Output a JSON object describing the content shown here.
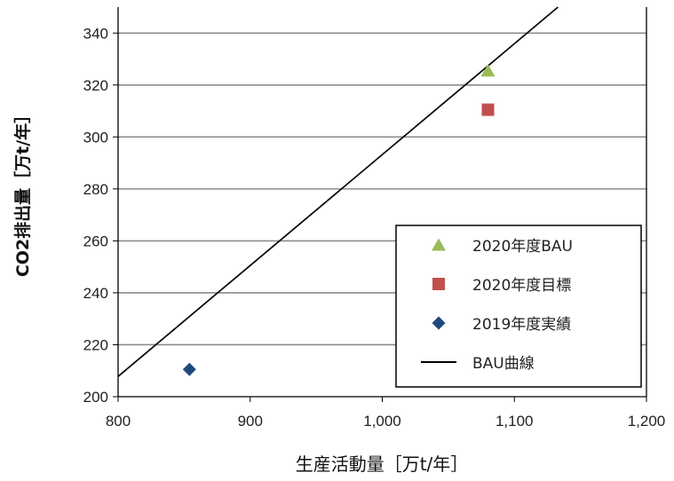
{
  "chart_data": {
    "type": "scatter",
    "title": "",
    "xlabel": "生産活動量［万t/年］",
    "ylabel": "CO2排出量［万t/年］",
    "xlim": [
      800,
      1200
    ],
    "ylim": [
      200,
      350
    ],
    "x_ticks": [
      800,
      900,
      1000,
      1100,
      1200
    ],
    "x_tick_labels": [
      "800",
      "900",
      "1,000",
      "1,100",
      "1,200"
    ],
    "y_ticks": [
      200,
      220,
      240,
      260,
      280,
      300,
      320,
      340
    ],
    "y_tick_labels": [
      "200",
      "220",
      "240",
      "260",
      "280",
      "300",
      "320",
      "340"
    ],
    "grid": "horizontal",
    "legend_position": "bottom-right",
    "series": [
      {
        "name": "2020年度BAU",
        "marker": "triangle",
        "color": "#9BBB59",
        "points": [
          {
            "x": 1080,
            "y": 325.5
          }
        ]
      },
      {
        "name": "2020年度目標",
        "marker": "square",
        "color": "#C0504D",
        "points": [
          {
            "x": 1080,
            "y": 310.5
          }
        ]
      },
      {
        "name": "2019年度実績",
        "marker": "diamond",
        "color": "#1F497D",
        "points": [
          {
            "x": 854,
            "y": 210.5
          }
        ]
      },
      {
        "name": "BAU曲線",
        "marker": "line",
        "color": "#000000",
        "points": [
          {
            "x": 800,
            "y": 207.8
          },
          {
            "x": 1133,
            "y": 350
          }
        ]
      }
    ]
  }
}
